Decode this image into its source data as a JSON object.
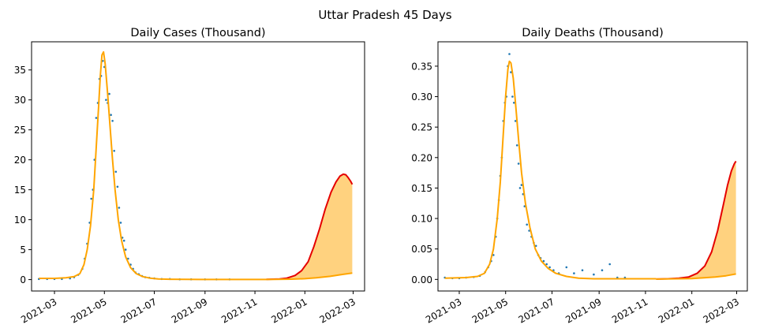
{
  "figure": {
    "suptitle": "Uttar Pradesh 45 Days"
  },
  "colors": {
    "observed": "#1f77b4",
    "projection": "#e50000",
    "baseline": "#ffa500",
    "band": "#ffa500",
    "axes": "#000000"
  },
  "chart_data": [
    {
      "type": "line",
      "title": "Daily Cases (Thousand)",
      "xlabel": "",
      "ylabel": "",
      "x_axis": "date",
      "xlim": [
        "2021-02-01",
        "2022-03-15"
      ],
      "ylim": [
        -1.9,
        39.7
      ],
      "yticks": [
        0,
        5,
        10,
        15,
        20,
        25,
        30,
        35
      ],
      "ytick_labels": [
        "0",
        "5",
        "10",
        "15",
        "20",
        "25",
        "30",
        "35"
      ],
      "xticks": [
        "2021-03-01",
        "2021-05-01",
        "2021-07-01",
        "2021-09-01",
        "2021-11-01",
        "2022-01-01",
        "2022-03-01"
      ],
      "xtick_labels": [
        "2021-03",
        "2021-05",
        "2021-07",
        "2021-09",
        "2021-11",
        "2022-01",
        "2022-03"
      ],
      "grid": false,
      "legend": "none",
      "observed": {
        "style": "points",
        "x": [
          "2021-02-10",
          "2021-02-20",
          "2021-03-01",
          "2021-03-10",
          "2021-03-20",
          "2021-03-25",
          "2021-03-30",
          "2021-04-04",
          "2021-04-07",
          "2021-04-10",
          "2021-04-13",
          "2021-04-15",
          "2021-04-17",
          "2021-04-19",
          "2021-04-21",
          "2021-04-23",
          "2021-04-25",
          "2021-04-27",
          "2021-04-29",
          "2021-05-01",
          "2021-05-03",
          "2021-05-05",
          "2021-05-07",
          "2021-05-09",
          "2021-05-11",
          "2021-05-13",
          "2021-05-15",
          "2021-05-17",
          "2021-05-19",
          "2021-05-21",
          "2021-05-23",
          "2021-05-25",
          "2021-05-27",
          "2021-05-30",
          "2021-06-02",
          "2021-06-05",
          "2021-06-08",
          "2021-06-12",
          "2021-06-16",
          "2021-06-20",
          "2021-06-25",
          "2021-07-01",
          "2021-07-10",
          "2021-07-20",
          "2021-08-01",
          "2021-08-15",
          "2021-09-01",
          "2021-09-15",
          "2021-10-01"
        ],
        "y": [
          0.1,
          0.1,
          0.1,
          0.1,
          0.2,
          0.4,
          0.8,
          1.8,
          3.5,
          6.0,
          9.5,
          13.5,
          15.0,
          20.0,
          27.0,
          29.5,
          33.5,
          34.0,
          36.5,
          35.5,
          30.0,
          29.5,
          31.0,
          27.5,
          26.5,
          21.5,
          18.0,
          15.5,
          12.0,
          9.5,
          7.0,
          6.5,
          5.0,
          3.5,
          2.5,
          1.8,
          1.2,
          0.9,
          0.6,
          0.4,
          0.3,
          0.2,
          0.1,
          0.1,
          0.05,
          0.05,
          0.03,
          0.03,
          0.03
        ]
      },
      "fit": {
        "x": [
          "2021-02-10",
          "2021-03-01",
          "2021-03-15",
          "2021-03-25",
          "2021-04-01",
          "2021-04-06",
          "2021-04-10",
          "2021-04-14",
          "2021-04-18",
          "2021-04-21",
          "2021-04-24",
          "2021-04-26",
          "2021-04-28",
          "2021-04-30",
          "2021-05-02",
          "2021-05-05",
          "2021-05-08",
          "2021-05-11",
          "2021-05-14",
          "2021-05-18",
          "2021-05-22",
          "2021-05-27",
          "2021-06-02",
          "2021-06-09",
          "2021-06-17",
          "2021-06-26",
          "2021-07-06",
          "2021-07-20",
          "2021-08-10",
          "2021-09-10",
          "2021-10-15",
          "2021-11-15"
        ],
        "y": [
          0.2,
          0.2,
          0.3,
          0.5,
          1.0,
          2.5,
          5.0,
          9.0,
          15.0,
          22.0,
          29.0,
          34.0,
          37.5,
          38.0,
          36.0,
          31.0,
          25.5,
          20.0,
          15.0,
          10.0,
          6.5,
          3.8,
          2.0,
          1.0,
          0.5,
          0.25,
          0.12,
          0.06,
          0.03,
          0.02,
          0.02,
          0.02
        ]
      },
      "projection_upper": {
        "x": [
          "2021-11-15",
          "2021-12-01",
          "2021-12-10",
          "2021-12-20",
          "2021-12-28",
          "2022-01-05",
          "2022-01-12",
          "2022-01-19",
          "2022-01-26",
          "2022-02-02",
          "2022-02-08",
          "2022-02-13",
          "2022-02-17",
          "2022-02-20",
          "2022-02-23",
          "2022-02-26",
          "2022-02-28"
        ],
        "y": [
          0.03,
          0.1,
          0.25,
          0.7,
          1.5,
          3.0,
          5.5,
          8.5,
          11.8,
          14.6,
          16.3,
          17.3,
          17.6,
          17.5,
          17.0,
          16.4,
          15.9
        ]
      },
      "projection_lower": {
        "x": [
          "2021-11-15",
          "2021-12-15",
          "2022-01-01",
          "2022-01-15",
          "2022-02-01",
          "2022-02-15",
          "2022-02-28"
        ],
        "y": [
          0.02,
          0.07,
          0.15,
          0.3,
          0.55,
          0.85,
          1.1
        ]
      }
    },
    {
      "type": "line",
      "title": "Daily Deaths (Thousand)",
      "xlabel": "",
      "ylabel": "",
      "x_axis": "date",
      "xlim": [
        "2021-02-01",
        "2022-03-15"
      ],
      "ylim": [
        -0.019,
        0.39
      ],
      "yticks": [
        0.0,
        0.05,
        0.1,
        0.15,
        0.2,
        0.25,
        0.3,
        0.35
      ],
      "ytick_labels": [
        "0.00",
        "0.05",
        "0.10",
        "0.15",
        "0.20",
        "0.25",
        "0.30",
        "0.35"
      ],
      "xticks": [
        "2021-03-01",
        "2021-05-01",
        "2021-07-01",
        "2021-09-01",
        "2021-11-01",
        "2022-01-01",
        "2022-03-01"
      ],
      "xtick_labels": [
        "2021-03",
        "2021-05",
        "2021-07",
        "2021-09",
        "2021-11",
        "2022-01",
        "2022-03"
      ],
      "grid": false,
      "legend": "none",
      "observed": {
        "style": "points",
        "x": [
          "2021-02-10",
          "2021-02-20",
          "2021-03-01",
          "2021-03-10",
          "2021-03-20",
          "2021-03-28",
          "2021-04-04",
          "2021-04-08",
          "2021-04-12",
          "2021-04-15",
          "2021-04-18",
          "2021-04-20",
          "2021-04-22",
          "2021-04-24",
          "2021-04-26",
          "2021-04-28",
          "2021-04-30",
          "2021-05-02",
          "2021-05-04",
          "2021-05-06",
          "2021-05-08",
          "2021-05-10",
          "2021-05-12",
          "2021-05-14",
          "2021-05-16",
          "2021-05-18",
          "2021-05-20",
          "2021-05-22",
          "2021-05-24",
          "2021-05-26",
          "2021-05-29",
          "2021-06-01",
          "2021-06-04",
          "2021-06-07",
          "2021-06-10",
          "2021-06-13",
          "2021-06-16",
          "2021-06-20",
          "2021-06-24",
          "2021-06-28",
          "2021-07-03",
          "2021-07-10",
          "2021-07-20",
          "2021-07-30",
          "2021-08-10",
          "2021-08-25",
          "2021-09-05",
          "2021-09-15",
          "2021-09-25",
          "2021-10-05"
        ],
        "y": [
          0.003,
          0.002,
          0.002,
          0.003,
          0.004,
          0.006,
          0.012,
          0.02,
          0.03,
          0.04,
          0.07,
          0.1,
          0.13,
          0.17,
          0.2,
          0.26,
          0.29,
          0.3,
          0.35,
          0.37,
          0.34,
          0.3,
          0.29,
          0.26,
          0.22,
          0.19,
          0.15,
          0.155,
          0.14,
          0.12,
          0.09,
          0.08,
          0.07,
          0.06,
          0.055,
          0.04,
          0.035,
          0.03,
          0.025,
          0.02,
          0.015,
          0.01,
          0.02,
          0.01,
          0.015,
          0.008,
          0.015,
          0.025,
          0.003,
          0.003
        ]
      },
      "fit": {
        "x": [
          "2021-02-10",
          "2021-03-10",
          "2021-03-25",
          "2021-04-03",
          "2021-04-10",
          "2021-04-15",
          "2021-04-20",
          "2021-04-24",
          "2021-04-28",
          "2021-05-01",
          "2021-05-04",
          "2021-05-06",
          "2021-05-08",
          "2021-05-11",
          "2021-05-14",
          "2021-05-18",
          "2021-05-22",
          "2021-05-27",
          "2021-06-02",
          "2021-06-09",
          "2021-06-17",
          "2021-06-26",
          "2021-07-06",
          "2021-07-20",
          "2021-08-05",
          "2021-08-25",
          "2021-09-20",
          "2021-10-20",
          "2021-11-15"
        ],
        "y": [
          0.002,
          0.003,
          0.005,
          0.01,
          0.025,
          0.05,
          0.1,
          0.16,
          0.24,
          0.3,
          0.345,
          0.358,
          0.355,
          0.33,
          0.29,
          0.23,
          0.175,
          0.125,
          0.085,
          0.05,
          0.03,
          0.018,
          0.01,
          0.005,
          0.002,
          0.001,
          0.001,
          0.001,
          0.001
        ]
      },
      "projection_upper": {
        "x": [
          "2021-11-15",
          "2021-12-01",
          "2021-12-15",
          "2021-12-28",
          "2022-01-08",
          "2022-01-18",
          "2022-01-27",
          "2022-02-04",
          "2022-02-11",
          "2022-02-17",
          "2022-02-22",
          "2022-02-26",
          "2022-02-28"
        ],
        "y": [
          0.0005,
          0.001,
          0.002,
          0.004,
          0.01,
          0.022,
          0.045,
          0.08,
          0.12,
          0.155,
          0.178,
          0.19,
          0.194
        ]
      },
      "projection_lower": {
        "x": [
          "2021-11-15",
          "2021-12-15",
          "2022-01-01",
          "2022-01-15",
          "2022-02-01",
          "2022-02-15",
          "2022-02-28"
        ],
        "y": [
          0.0005,
          0.001,
          0.0015,
          0.0025,
          0.004,
          0.006,
          0.009
        ]
      }
    }
  ]
}
